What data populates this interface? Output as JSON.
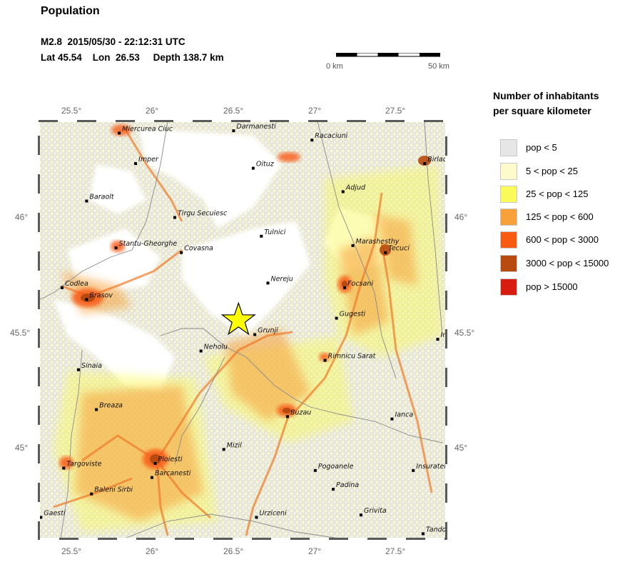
{
  "header": {
    "title": "Population",
    "event_line": "M2.8  2015/05/30 - 22:12:31 UTC",
    "location_line": "Lat 45.54    Lon  26.53     Depth 138.7 km"
  },
  "scale_bar": {
    "start_label": "0 km",
    "end_label": "50 km"
  },
  "legend": {
    "title_line1": "Number of inhabitants",
    "title_line2": "per square kilometer",
    "items": [
      {
        "label": "pop < 5",
        "color": "#e6e6e6"
      },
      {
        "label": "5 < pop < 25",
        "color": "#fdfacc"
      },
      {
        "label": "25 < pop < 125",
        "color": "#fafa5a"
      },
      {
        "label": "125 < pop < 600",
        "color": "#f8a03a"
      },
      {
        "label": "600 < pop < 3000",
        "color": "#f85a14"
      },
      {
        "label": "3000 < pop < 15000",
        "color": "#b84a10"
      },
      {
        "label": "pop > 15000",
        "color": "#d81c10"
      }
    ]
  },
  "axes": {
    "lon_ticks": [
      "25.5°",
      "26°",
      "26.5°",
      "27°",
      "27.5°"
    ],
    "lat_ticks": [
      "46°",
      "45.5°",
      "45°"
    ]
  },
  "epicenter": {
    "lat": 45.54,
    "lon": 26.53,
    "color": "#ffff00"
  },
  "cities": [
    {
      "name": "Miercurea Ciuc",
      "lon": 25.8,
      "lat": 46.36
    },
    {
      "name": "Darmanesti",
      "lon": 26.5,
      "lat": 46.37
    },
    {
      "name": "Racaciuni",
      "lon": 26.98,
      "lat": 46.33
    },
    {
      "name": "Birlad",
      "lon": 27.67,
      "lat": 46.23
    },
    {
      "name": "Imper",
      "lon": 25.9,
      "lat": 46.23
    },
    {
      "name": "Oituz",
      "lon": 26.62,
      "lat": 46.21
    },
    {
      "name": "Adjud",
      "lon": 27.17,
      "lat": 46.11
    },
    {
      "name": "Baraolt",
      "lon": 25.6,
      "lat": 46.07
    },
    {
      "name": "Tirgu Secuiesc",
      "lon": 26.14,
      "lat": 46.0
    },
    {
      "name": "Tulnici",
      "lon": 26.67,
      "lat": 45.92
    },
    {
      "name": "Marashesthy",
      "lon": 27.23,
      "lat": 45.88
    },
    {
      "name": "Tecuci",
      "lon": 27.43,
      "lat": 45.85
    },
    {
      "name": "Stantu-Gheorghe",
      "lon": 25.78,
      "lat": 45.87
    },
    {
      "name": "Covasna",
      "lon": 26.18,
      "lat": 45.85
    },
    {
      "name": "Nereju",
      "lon": 26.71,
      "lat": 45.72
    },
    {
      "name": "Focsani",
      "lon": 27.18,
      "lat": 45.7
    },
    {
      "name": "Codlea",
      "lon": 25.45,
      "lat": 45.7
    },
    {
      "name": "Brasov",
      "lon": 25.6,
      "lat": 45.65
    },
    {
      "name": "Gugesti",
      "lon": 27.13,
      "lat": 45.57
    },
    {
      "name": "Grunji",
      "lon": 26.63,
      "lat": 45.5
    },
    {
      "name": "Neholu",
      "lon": 26.3,
      "lat": 45.43
    },
    {
      "name": "Rimnicu Sarat",
      "lon": 27.06,
      "lat": 45.39
    },
    {
      "name": "Sinaia",
      "lon": 25.55,
      "lat": 45.35
    },
    {
      "name": "Breaza",
      "lon": 25.66,
      "lat": 45.18
    },
    {
      "name": "Buzau",
      "lon": 26.83,
      "lat": 45.15
    },
    {
      "name": "Ianca",
      "lon": 27.47,
      "lat": 45.14
    },
    {
      "name": "Mizil",
      "lon": 26.44,
      "lat": 45.01
    },
    {
      "name": "Targoviste",
      "lon": 25.46,
      "lat": 44.93
    },
    {
      "name": "Ploiesti",
      "lon": 26.02,
      "lat": 44.95
    },
    {
      "name": "Pogoanele",
      "lon": 27.0,
      "lat": 44.92
    },
    {
      "name": "Insuratei",
      "lon": 27.6,
      "lat": 44.92
    },
    {
      "name": "Barcanesti",
      "lon": 26.0,
      "lat": 44.89
    },
    {
      "name": "Padina",
      "lon": 27.11,
      "lat": 44.84
    },
    {
      "name": "Baleni Sirbi",
      "lon": 25.63,
      "lat": 44.82
    },
    {
      "name": "Grivita",
      "lon": 27.28,
      "lat": 44.73
    },
    {
      "name": "Gaesti",
      "lon": 25.32,
      "lat": 44.72
    },
    {
      "name": "Urziceni",
      "lon": 26.64,
      "lat": 44.72
    },
    {
      "name": "Tando",
      "lon": 27.66,
      "lat": 44.65
    },
    {
      "name": "In",
      "lon": 27.75,
      "lat": 45.48
    }
  ]
}
